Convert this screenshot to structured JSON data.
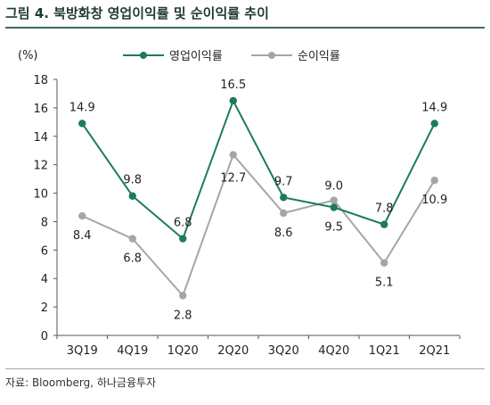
{
  "header": {
    "title": "그림 4. 북방화창 영업이익률 및 순이익률 추이"
  },
  "footer": {
    "source": "자료: Bloomberg, 하나금융투자"
  },
  "chart_data": {
    "type": "line",
    "categories": [
      "3Q19",
      "4Q19",
      "1Q20",
      "2Q20",
      "3Q20",
      "4Q20",
      "1Q21",
      "2Q21"
    ],
    "series": [
      {
        "name": "영업이익률",
        "values": [
          14.9,
          9.8,
          6.8,
          16.5,
          9.7,
          9.0,
          7.8,
          14.9
        ],
        "color": "#1e7a5f"
      },
      {
        "name": "순이익률",
        "values": [
          8.4,
          6.8,
          2.8,
          12.7,
          8.6,
          9.5,
          5.1,
          10.9
        ],
        "color": "#a6a6a6"
      }
    ],
    "ylabel": "(%)",
    "ylim": [
      0,
      18
    ],
    "yticks": [
      0,
      2,
      4,
      6,
      8,
      10,
      12,
      14,
      16,
      18
    ],
    "legend": "top",
    "grid": false
  }
}
